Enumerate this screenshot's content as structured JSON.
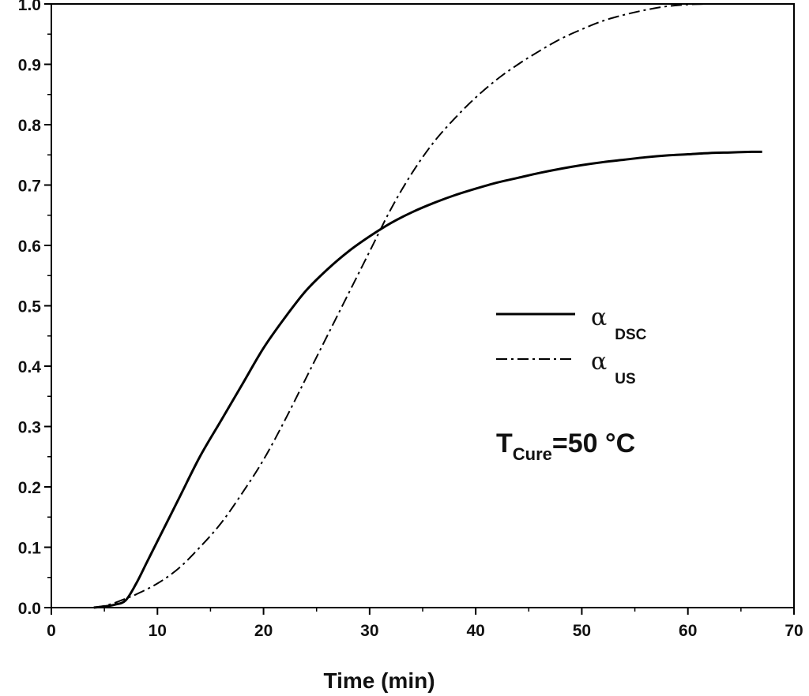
{
  "chart_data": {
    "type": "line",
    "title": "",
    "xlabel": "Time (min)",
    "ylabel": "",
    "xlim": [
      0,
      70
    ],
    "ylim": [
      0.0,
      1.0
    ],
    "x_ticks": [
      0,
      10,
      20,
      30,
      40,
      50,
      60,
      70
    ],
    "x_tick_labels": [
      "0",
      "10",
      "20",
      "30",
      "40",
      "50",
      "60",
      "70"
    ],
    "y_ticks": [
      0.0,
      0.1,
      0.2,
      0.3,
      0.4,
      0.5,
      0.6,
      0.7,
      0.8,
      0.9,
      1.0
    ],
    "y_tick_labels": [
      "0.0",
      "0.1",
      "0.2",
      "0.3",
      "0.4",
      "0.5",
      "0.6",
      "0.7",
      "0.8",
      "0.9",
      "1.0"
    ],
    "grid": false,
    "legend_position": "right-center",
    "series": [
      {
        "name": "alpha DSC",
        "legend_symbol": "α",
        "legend_subscript": "DSC",
        "style": "solid",
        "color": "#000000",
        "x": [
          4,
          5,
          6,
          7,
          8,
          9,
          10,
          12,
          14,
          16,
          18,
          20,
          22,
          24,
          26,
          28,
          30,
          32,
          34,
          36,
          38,
          40,
          42,
          44,
          46,
          48,
          50,
          52,
          54,
          56,
          58,
          60,
          62,
          64,
          66,
          67
        ],
        "y": [
          0.0,
          0.002,
          0.005,
          0.012,
          0.04,
          0.075,
          0.11,
          0.18,
          0.25,
          0.31,
          0.37,
          0.43,
          0.48,
          0.525,
          0.56,
          0.59,
          0.615,
          0.637,
          0.655,
          0.67,
          0.683,
          0.694,
          0.704,
          0.712,
          0.72,
          0.727,
          0.733,
          0.738,
          0.742,
          0.746,
          0.749,
          0.751,
          0.753,
          0.754,
          0.755,
          0.755
        ]
      },
      {
        "name": "alpha US",
        "legend_symbol": "α",
        "legend_subscript": "US",
        "style": "dash-dot",
        "color": "#000000",
        "x": [
          4,
          5,
          6,
          7,
          8,
          10,
          12,
          14,
          16,
          18,
          20,
          22,
          24,
          26,
          28,
          30,
          32,
          34,
          36,
          38,
          40,
          42,
          44,
          46,
          48,
          50,
          52,
          54,
          56,
          58,
          60,
          62,
          64,
          66,
          67
        ],
        "y": [
          0.0,
          0.003,
          0.008,
          0.015,
          0.022,
          0.04,
          0.065,
          0.1,
          0.14,
          0.19,
          0.245,
          0.31,
          0.38,
          0.45,
          0.52,
          0.59,
          0.66,
          0.72,
          0.77,
          0.81,
          0.845,
          0.875,
          0.9,
          0.922,
          0.942,
          0.958,
          0.972,
          0.982,
          0.99,
          0.996,
          0.999,
          1.0,
          1.0,
          1.0,
          1.0
        ]
      }
    ],
    "annotations": [
      {
        "main": "T",
        "subscript": "Cure",
        "suffix": "=50 °C"
      }
    ]
  }
}
